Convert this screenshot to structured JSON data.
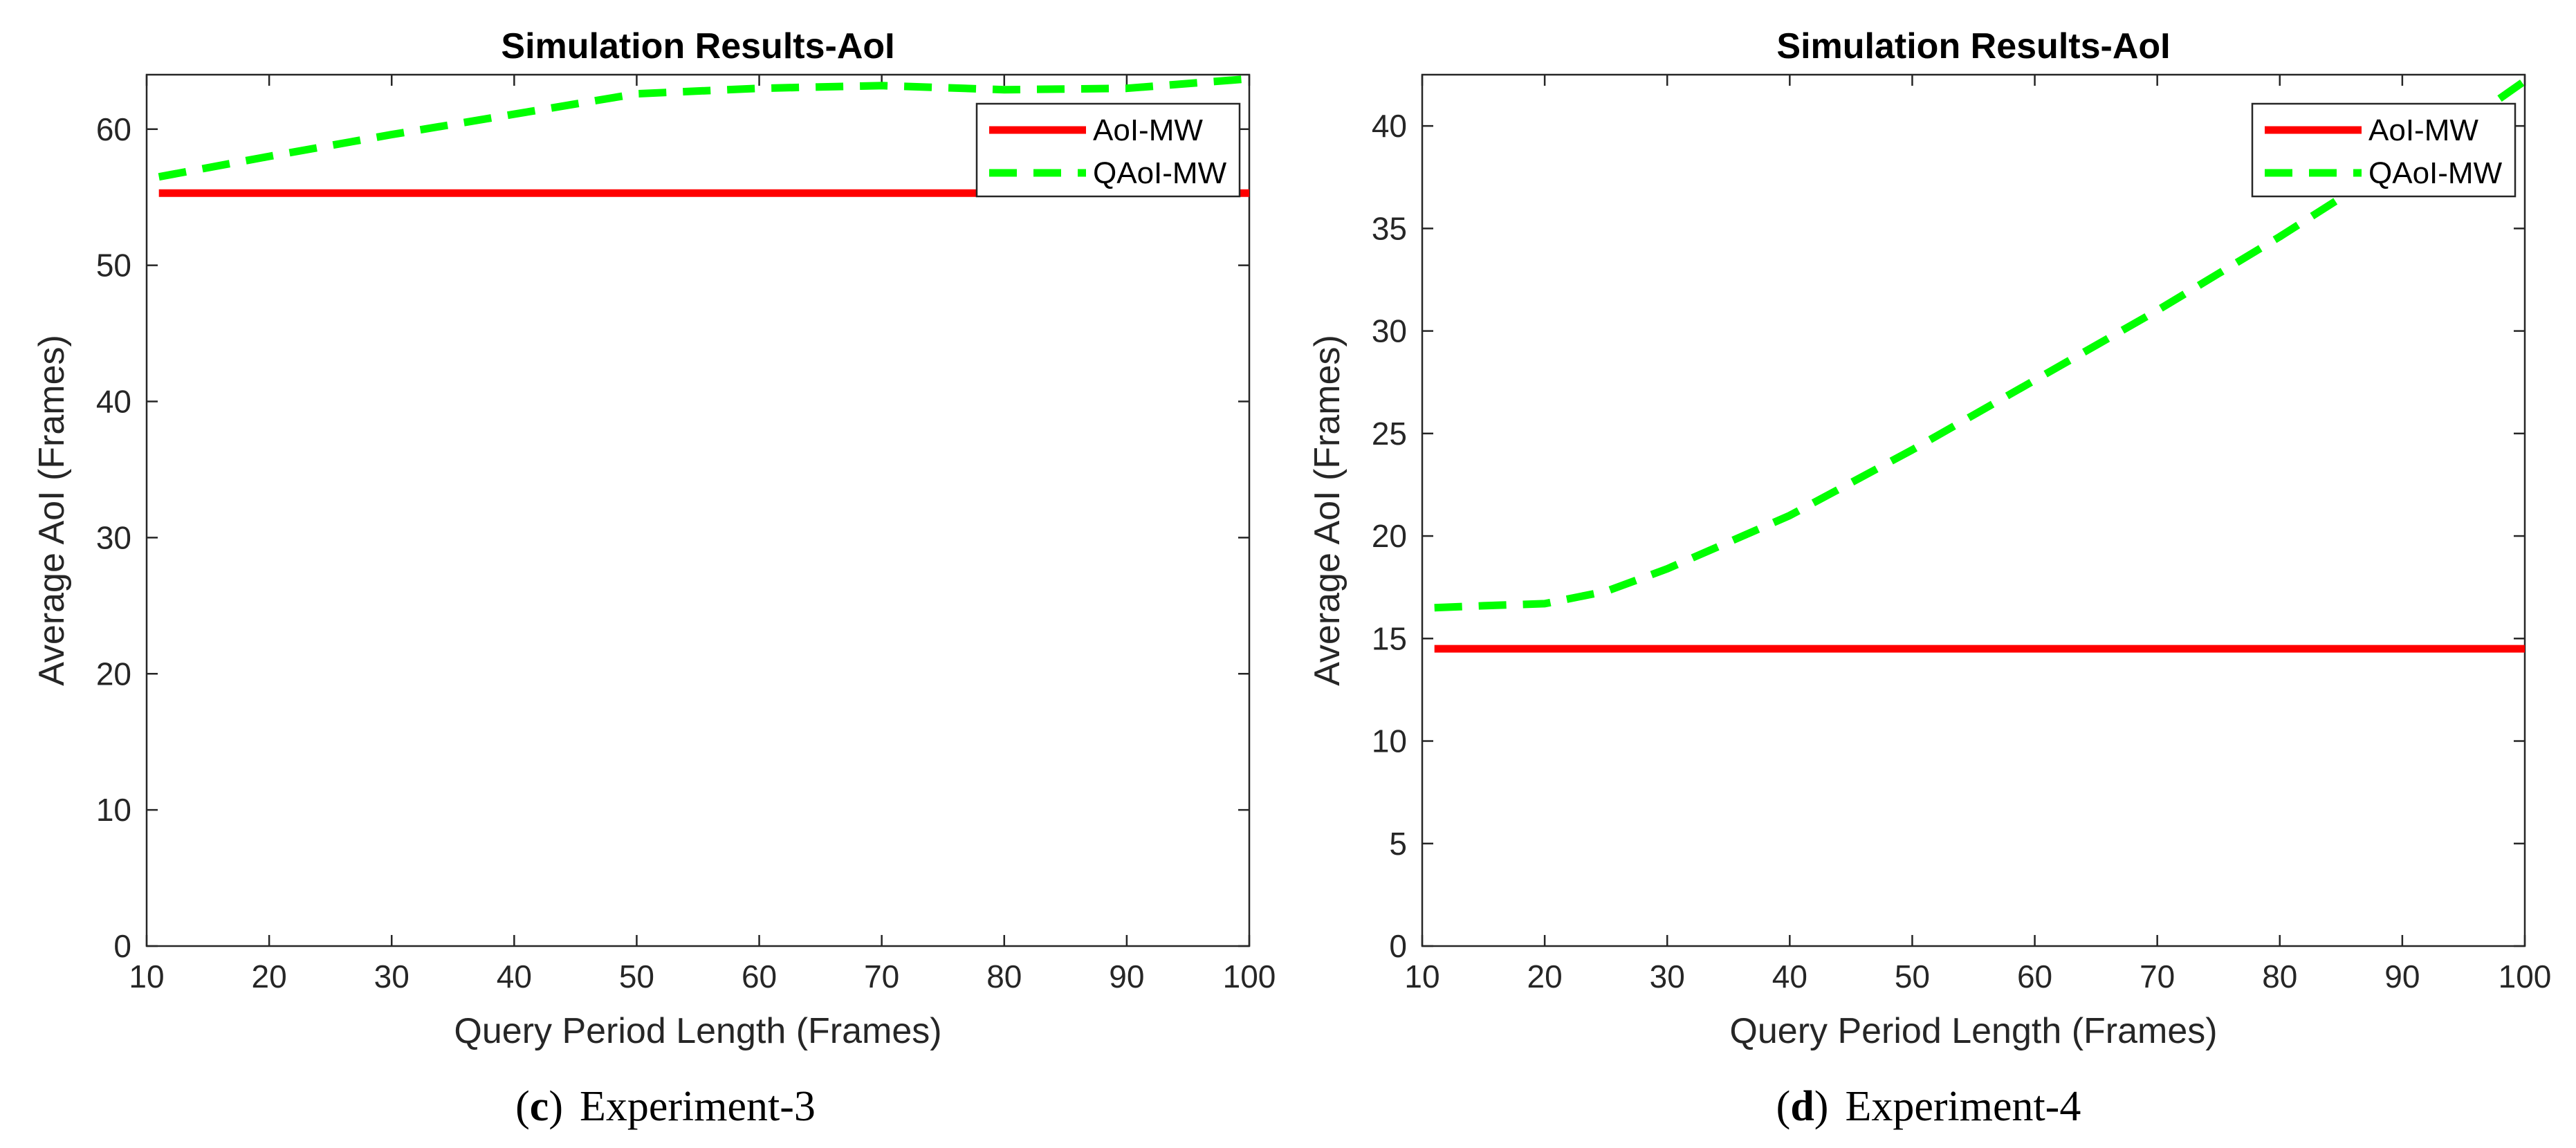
{
  "chart_data": [
    {
      "type": "line",
      "title": "Simulation Results-AoI",
      "xlabel": "Query Period Length (Frames)",
      "ylabel": "Average AoI (Frames)",
      "xlim": [
        10,
        100
      ],
      "ylim": [
        0,
        64
      ],
      "xticks": [
        10,
        20,
        30,
        40,
        50,
        60,
        70,
        80,
        90,
        100
      ],
      "yticks": [
        0,
        10,
        20,
        30,
        40,
        50,
        60
      ],
      "grid": false,
      "legend_position": "top-right",
      "caption_letter": "c",
      "caption_text": "Experiment-3",
      "series": [
        {
          "name": "AoI-MW",
          "color": "#ff0000",
          "style": "solid",
          "x": [
            11,
            100
          ],
          "y": [
            55.3,
            55.3
          ]
        },
        {
          "name": "QAoI-MW",
          "color": "#00ff00",
          "style": "dashed",
          "x": [
            11,
            20,
            30,
            40,
            50,
            60,
            70,
            80,
            90,
            100
          ],
          "y": [
            56.5,
            58.0,
            59.6,
            61.1,
            62.6,
            63.0,
            63.2,
            62.9,
            63.0,
            63.7
          ]
        }
      ]
    },
    {
      "type": "line",
      "title": "Simulation Results-AoI",
      "xlabel": "Query Period Length (Frames)",
      "ylabel": "Average AoI (Frames)",
      "xlim": [
        10,
        100
      ],
      "ylim": [
        0,
        42.5
      ],
      "xticks": [
        10,
        20,
        30,
        40,
        50,
        60,
        70,
        80,
        90,
        100
      ],
      "yticks": [
        0,
        5,
        10,
        15,
        20,
        25,
        30,
        35,
        40
      ],
      "grid": false,
      "legend_position": "top-right",
      "caption_letter": "d",
      "caption_text": "Experiment-4",
      "series": [
        {
          "name": "AoI-MW",
          "color": "#ff0000",
          "style": "solid",
          "x": [
            11,
            100
          ],
          "y": [
            14.5,
            14.5
          ]
        },
        {
          "name": "QAoI-MW",
          "color": "#00ff00",
          "style": "dashed",
          "x": [
            11,
            15,
            20,
            25,
            30,
            35,
            40,
            45,
            50,
            55,
            60,
            65,
            70,
            75,
            80,
            85,
            90,
            95,
            100
          ],
          "y": [
            16.5,
            16.6,
            16.7,
            17.3,
            18.4,
            19.7,
            21.0,
            22.6,
            24.2,
            25.9,
            27.6,
            29.3,
            31.0,
            32.8,
            34.6,
            36.5,
            38.3,
            40.1,
            42.2
          ]
        }
      ]
    }
  ]
}
